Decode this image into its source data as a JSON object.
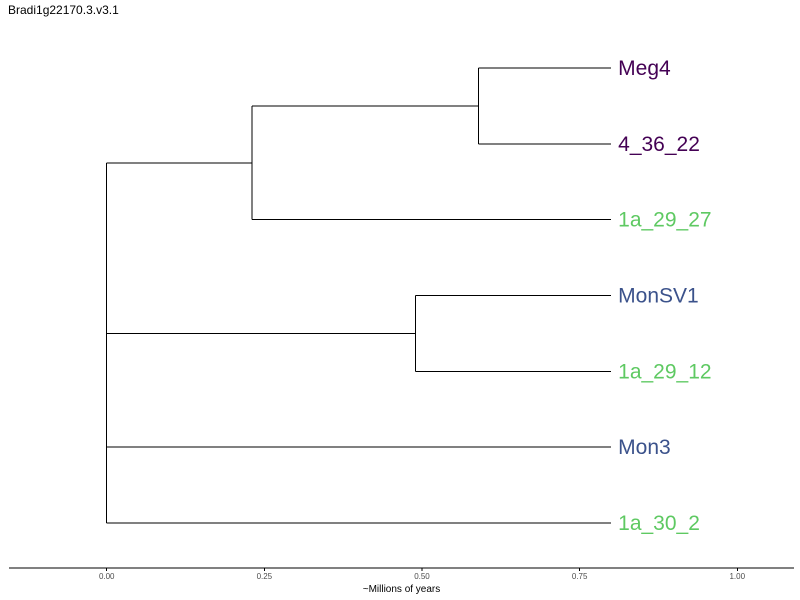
{
  "chart_data": {
    "type": "dendrogram",
    "title": "Bradi1g22170.3.v3.1",
    "xlabel": "~Millions of years",
    "xlim": [
      -0.155,
      1.09
    ],
    "x_ticks": [
      "0.00",
      "0.25",
      "0.50",
      "0.75",
      "1.00"
    ],
    "x_tick_values": [
      0.0,
      0.25,
      0.5,
      0.75,
      1.0
    ],
    "tip_x": 0.8,
    "tips": [
      {
        "label": "Meg4",
        "color": "#440154"
      },
      {
        "label": "4_36_22",
        "color": "#440154"
      },
      {
        "label": "1a_29_27",
        "color": "#5ec962"
      },
      {
        "label": "MonSV1",
        "color": "#3b528b"
      },
      {
        "label": "1a_29_12",
        "color": "#5ec962"
      },
      {
        "label": "Mon3",
        "color": "#3b528b"
      },
      {
        "label": "1a_30_2",
        "color": "#5ec962"
      }
    ],
    "tree": {
      "height": 0.0,
      "children": [
        {
          "height": 0.0,
          "children": [
            {
              "height": 0.23,
              "children": [
                {
                  "height": 0.59,
                  "children": [
                    {
                      "tip": 0
                    },
                    {
                      "tip": 1
                    }
                  ]
                },
                {
                  "tip": 2
                }
              ]
            },
            {
              "height": 0.49,
              "children": [
                {
                  "tip": 3
                },
                {
                  "tip": 4
                }
              ]
            }
          ]
        },
        {
          "height": 0.0,
          "children": [
            {
              "tip": 5
            },
            {
              "tip": 6
            }
          ]
        }
      ]
    }
  }
}
